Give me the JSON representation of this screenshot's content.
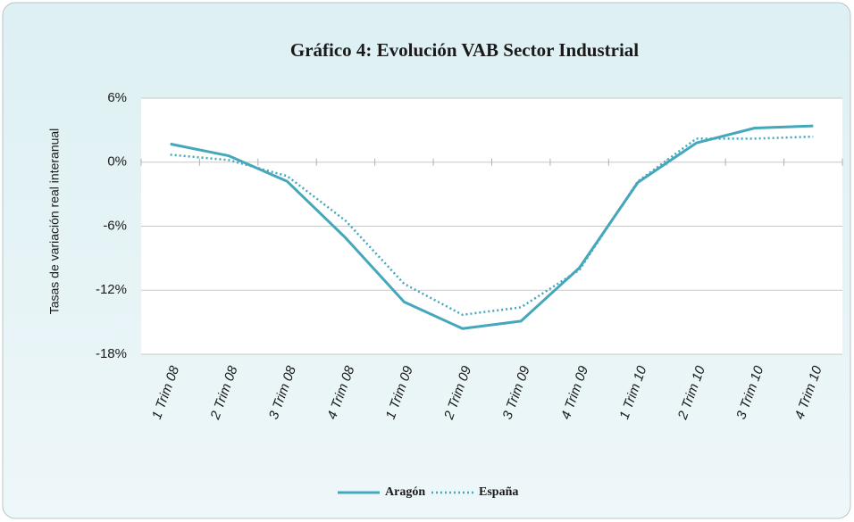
{
  "chart_data": {
    "type": "line",
    "title": "Gráfico 4: Evolución VAB Sector Industrial",
    "y_label": "Tasas de variación real interanual",
    "categories": [
      "1 Trim 08",
      "2 Trim 08",
      "3 Trim 08",
      "4 Trim 08",
      "1 Trim 09",
      "2 Trim 09",
      "3 Trim 09",
      "4 Trim 09",
      "1 Trim 10",
      "2 Trim 10",
      "3 Trim 10",
      "4 Trim 10"
    ],
    "series": [
      {
        "name": "Aragón",
        "color": "#45a7bb",
        "dash": "solid",
        "values": [
          1.7,
          0.6,
          -1.8,
          -7.1,
          -13.1,
          -15.6,
          -14.9,
          -9.9,
          -1.9,
          1.8,
          3.2,
          3.4
        ]
      },
      {
        "name": "España",
        "color": "#45a7bb",
        "dash": "dotted",
        "values": [
          0.7,
          0.2,
          -1.3,
          -5.5,
          -11.4,
          -14.3,
          -13.6,
          -10.1,
          -1.8,
          2.2,
          2.2,
          2.4
        ]
      }
    ],
    "ylim": [
      -18,
      6
    ],
    "yticks": [
      {
        "value": -18,
        "label": "-18%"
      },
      {
        "value": -12,
        "label": "-12%"
      },
      {
        "value": -6,
        "label": "-6%"
      },
      {
        "value": 0,
        "label": "0%"
      },
      {
        "value": 6,
        "label": "6%"
      }
    ],
    "grid": true,
    "legend": "bottom"
  }
}
